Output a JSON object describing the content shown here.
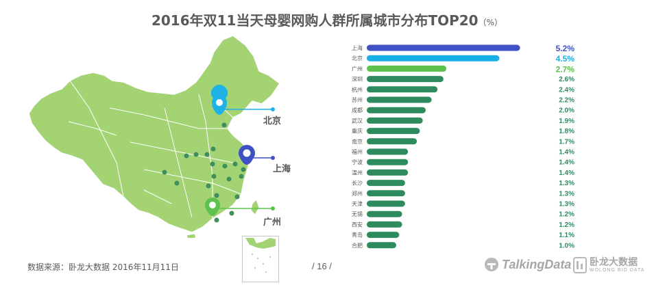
{
  "title": "2016年双11当天母婴网购人群所属城市分布TOP20",
  "title_unit": "（%）",
  "map": {
    "callouts": [
      {
        "label": "北京",
        "color": "#1EB2E6"
      },
      {
        "label": "上海",
        "color": "#3F51C5"
      },
      {
        "label": "广州",
        "color": "#5CC24B"
      }
    ]
  },
  "chart_data": {
    "type": "bar",
    "orientation": "horizontal",
    "categories": [
      "上海",
      "北京",
      "广州",
      "深圳",
      "杭州",
      "苏州",
      "成都",
      "武汉",
      "重庆",
      "南京",
      "福州",
      "宁波",
      "温州",
      "长沙",
      "郑州",
      "天津",
      "无锡",
      "西安",
      "青岛",
      "合肥"
    ],
    "values": [
      5.2,
      4.5,
      2.7,
      2.6,
      2.4,
      2.2,
      2.0,
      1.9,
      1.8,
      1.7,
      1.4,
      1.4,
      1.4,
      1.3,
      1.3,
      1.3,
      1.2,
      1.2,
      1.1,
      1.0
    ],
    "value_labels": [
      "5.2%",
      "4.5%",
      "2.7%",
      "2.6%",
      "2.4%",
      "2.2%",
      "2.0%",
      "1.9%",
      "1.8%",
      "1.7%",
      "1.4%",
      "1.4%",
      "1.4%",
      "1.3%",
      "1.3%",
      "1.3%",
      "1.2%",
      "1.2%",
      "1.1%",
      "1.0%"
    ],
    "colors": {
      "top1": "#3F51C5",
      "top2": "#1AAFE6",
      "top3": "#5CC24B",
      "rest": "#2E8B5E"
    }
  },
  "footer": {
    "source": "数据来源：卧龙大数据  2016年11月11日",
    "page_number": "/  16  /",
    "brand_talkingdata": "TalkingData",
    "brand_wolong_cn": "卧龙大数据",
    "brand_wolong_en": "WOLONG BIG DATA"
  }
}
